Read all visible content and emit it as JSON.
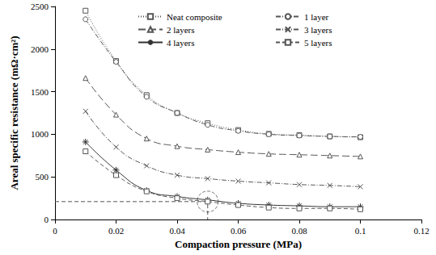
{
  "chart_data": {
    "type": "line",
    "x_label": "Compaction pressure (MPa)",
    "y_label": "Areal specific resistance (mΩ·cm²)",
    "xlim": [
      0,
      0.12
    ],
    "xticks": [
      0,
      0.02,
      0.04,
      0.06,
      0.08,
      0.1,
      0.12
    ],
    "ylim": [
      0,
      2500
    ],
    "yticks": [
      0,
      500,
      1000,
      1500,
      2000,
      2500
    ],
    "grid": false,
    "legend": "upper right",
    "x": [
      0.01,
      0.02,
      0.03,
      0.04,
      0.05,
      0.06,
      0.07,
      0.08,
      0.09,
      0.1
    ],
    "series": [
      {
        "name": "Neat composite",
        "color": "#555555",
        "marker": "square",
        "line_style": "dotted",
        "values": [
          2450,
          1860,
          1460,
          1250,
          1130,
          1050,
          1005,
          990,
          975,
          965
        ]
      },
      {
        "name": "1 layer",
        "color": "#555555",
        "marker": "circle",
        "line_style": "dashdot",
        "values": [
          2350,
          1850,
          1440,
          1250,
          1110,
          1040,
          1000,
          985,
          975,
          970
        ]
      },
      {
        "name": "2 layers",
        "color": "#555555",
        "marker": "triangle",
        "line_style": "longdash",
        "values": [
          1660,
          1230,
          950,
          860,
          820,
          790,
          770,
          760,
          750,
          740
        ]
      },
      {
        "name": "3 layers",
        "color": "#555555",
        "marker": "cross",
        "line_style": "dashdot",
        "values": [
          1270,
          850,
          630,
          520,
          480,
          450,
          430,
          410,
          400,
          385
        ]
      },
      {
        "name": "4 layers",
        "color": "#333333",
        "marker": "star",
        "line_style": "solid",
        "values": [
          910,
          580,
          340,
          270,
          230,
          190,
          170,
          160,
          150,
          150
        ]
      },
      {
        "name": "5 layers",
        "color": "#555555",
        "marker": "square",
        "line_style": "dashed",
        "values": [
          800,
          520,
          330,
          250,
          210,
          170,
          140,
          130,
          130,
          120
        ]
      }
    ],
    "annotation": {
      "x": 0.05,
      "y": 210,
      "line_style": "dashed",
      "color": "#555555"
    }
  }
}
